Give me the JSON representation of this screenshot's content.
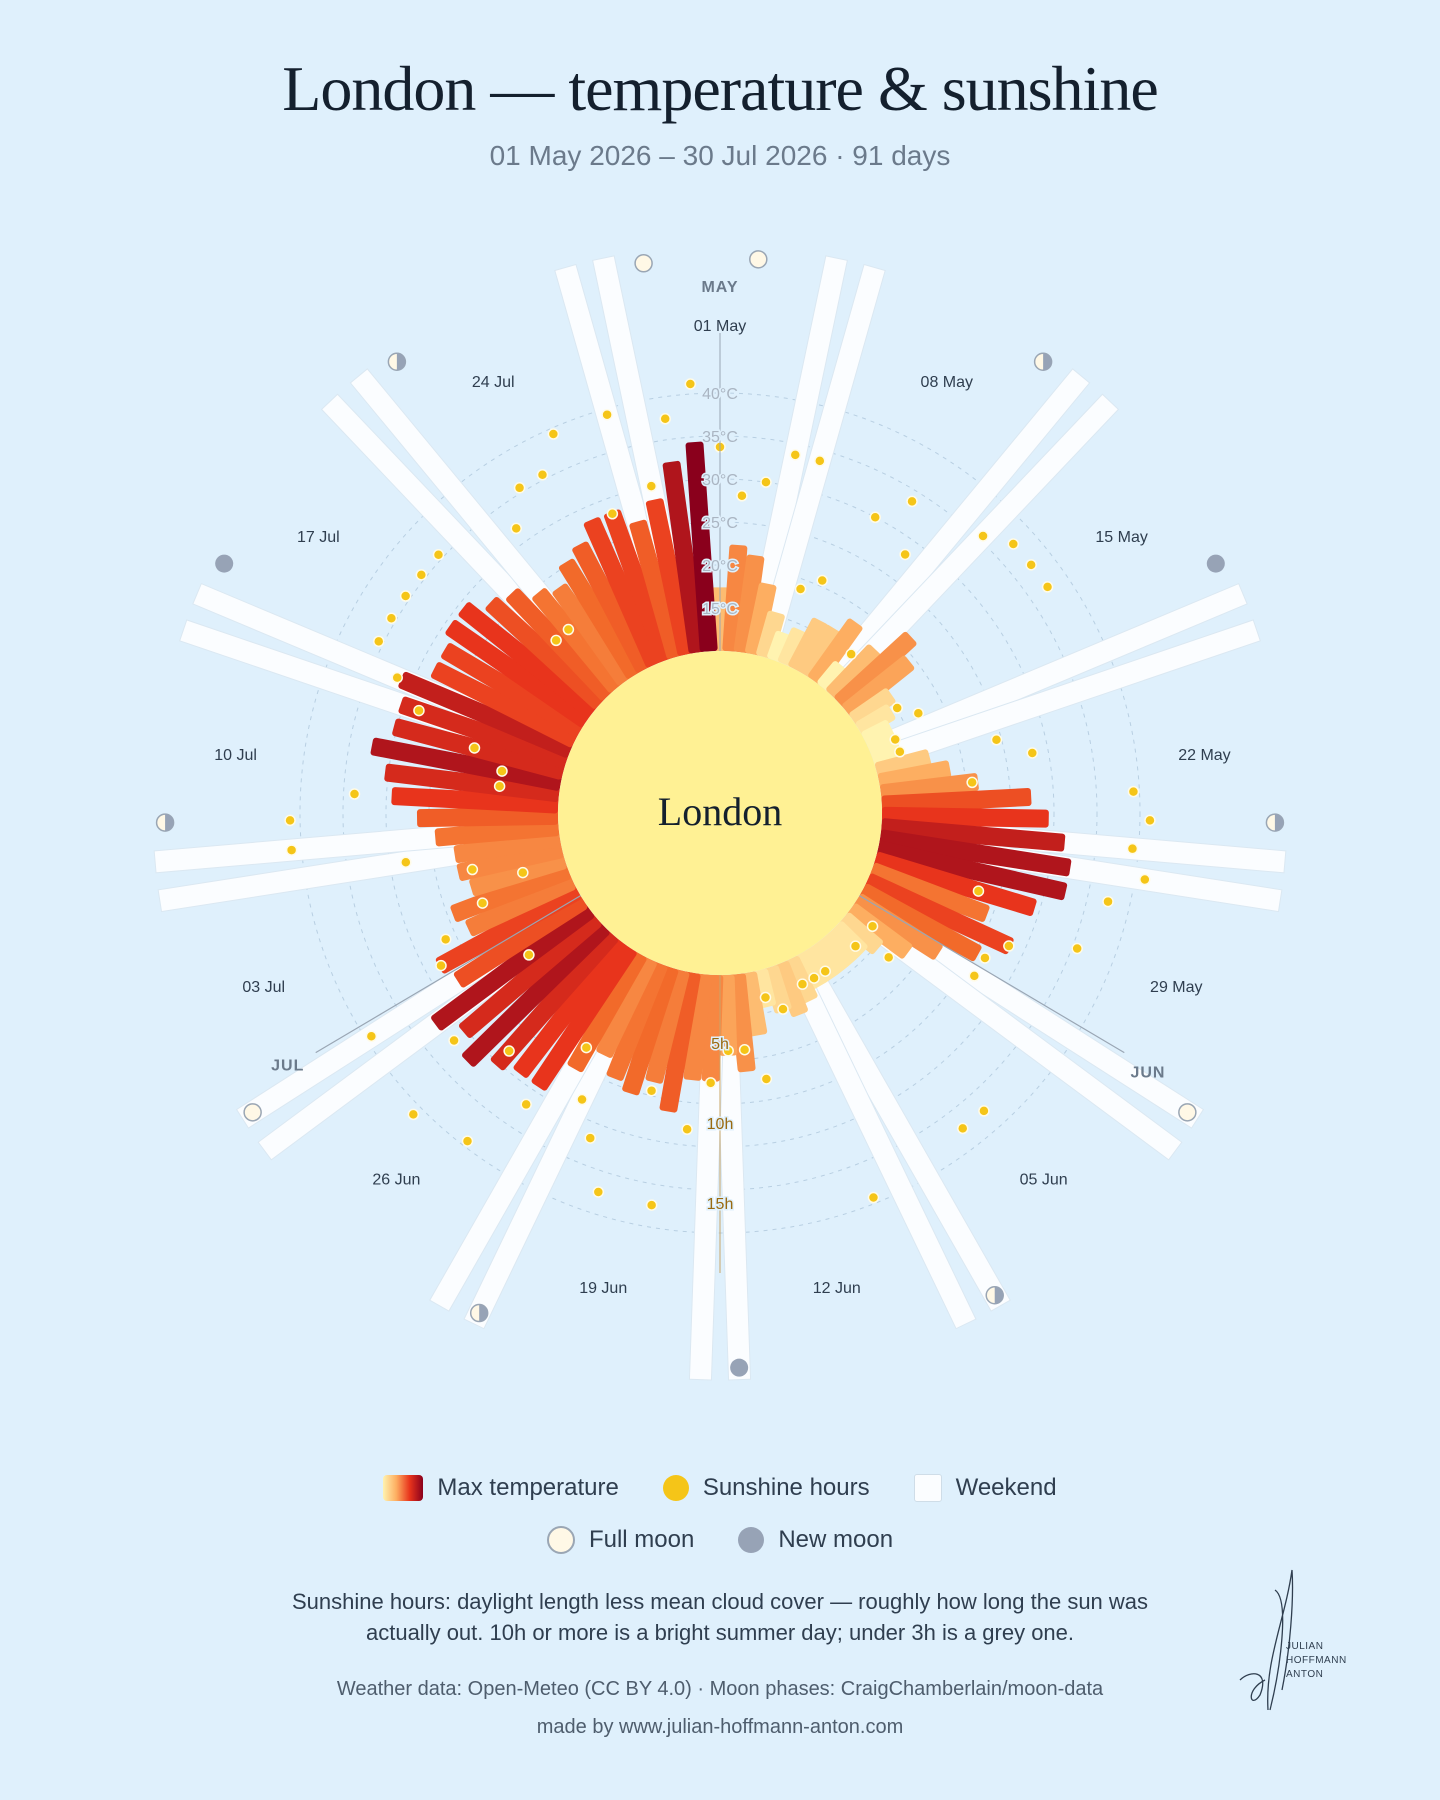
{
  "title": "London — temperature & sunshine",
  "subtitle": "01 May 2026 – 30 Jul 2026 · 91 days",
  "chart_data": {
    "type": "radial-bar",
    "center_label": "London",
    "start_date": "01 May 2026",
    "month_labels": [
      "MAY",
      "JUN",
      "JUL"
    ],
    "date_labels": [
      "01 May",
      "08 May",
      "15 May",
      "22 May",
      "29 May",
      "05 Jun",
      "12 Jun",
      "19 Jun",
      "26 Jun",
      "03 Jul",
      "10 Jul",
      "17 Jul",
      "24 Jul"
    ],
    "temp_ticks": [
      "15°C",
      "20°C",
      "25°C",
      "30°C",
      "35°C",
      "40°C"
    ],
    "sun_ticks": [
      "5h",
      "10h",
      "15h"
    ],
    "max_temp": [
      16,
      21,
      20,
      17,
      14,
      12,
      13,
      15,
      15,
      17,
      12,
      16,
      20,
      18,
      14,
      13,
      12,
      12,
      12,
      15,
      17,
      20,
      26,
      28,
      30,
      31,
      31,
      28,
      23,
      27,
      24,
      20,
      17,
      14,
      13,
      13,
      13,
      13,
      13,
      14,
      15,
      14,
      13,
      16,
      20,
      18,
      21,
      21,
      25,
      22,
      24,
      23,
      21,
      24,
      28,
      28,
      29,
      31,
      29,
      31,
      26,
      27,
      22,
      23,
      20,
      21,
      21,
      23,
      25,
      28,
      29,
      31,
      29,
      29,
      30,
      27,
      27,
      28,
      28,
      26,
      25,
      23,
      22,
      24,
      25,
      27,
      27,
      25,
      27,
      31,
      33
    ],
    "sunshine": [
      12,
      9,
      10,
      12,
      12,
      4,
      5,
      10,
      12,
      9,
      2,
      13,
      14,
      14,
      14,
      2,
      3,
      1,
      1,
      7,
      9,
      5,
      15,
      16,
      15,
      16,
      14,
      6,
      13,
      9,
      8,
      8,
      1,
      3,
      1,
      14,
      14,
      1,
      1,
      1,
      15,
      2,
      1,
      6,
      4,
      4,
      6,
      9,
      14,
      7,
      14,
      11,
      9,
      6,
      11,
      15,
      9,
      16,
      11,
      4,
      15,
      9,
      8,
      5,
      2,
      5,
      9,
      16,
      16,
      12,
      3,
      3,
      5,
      9,
      11,
      13,
      13,
      13,
      13,
      13,
      4,
      4,
      11,
      13,
      13,
      15,
      9,
      15,
      10,
      14,
      16
    ],
    "weekend_days": [
      3,
      4,
      10,
      11,
      17,
      18,
      24,
      25,
      31,
      32,
      38,
      39,
      45,
      46,
      52,
      53,
      59,
      60,
      66,
      67,
      73,
      74,
      80,
      81,
      87,
      88
    ],
    "full_moon_days": [
      1,
      31,
      60,
      89
    ],
    "new_moon_days": [
      16,
      45,
      75
    ],
    "quarter_moon_days": [
      9,
      23,
      38,
      52,
      68,
      82
    ],
    "legend": [
      "Max temperature",
      "Sunshine hours",
      "Weekend",
      "Full moon",
      "New moon"
    ],
    "colors": {
      "cool": "#fff3b0",
      "mid": "#fdae61",
      "warm": "#e8341c",
      "hot": "#8a001c",
      "sunshine": "#f5c518",
      "sun_disc": "#fff194",
      "background": "#dff0fc"
    }
  },
  "legend": {
    "temp": "Max temperature",
    "sun": "Sunshine hours",
    "weekend": "Weekend",
    "full_moon": "Full moon",
    "new_moon": "New moon"
  },
  "note": "Sunshine hours: daylight length less mean cloud cover — roughly how long the sun was actually out. 10h or more is a bright summer day; under 3h is a grey one.",
  "credits": {
    "data": "Weather data: Open-Meteo (CC BY 4.0) · Moon phases: CraigChamberlain/moon-data",
    "made_by": "made by www.julian-hoffmann-anton.com"
  },
  "signature": {
    "line1": "JULIAN",
    "line2": "HOFFMANN",
    "line3": "ANTON"
  }
}
